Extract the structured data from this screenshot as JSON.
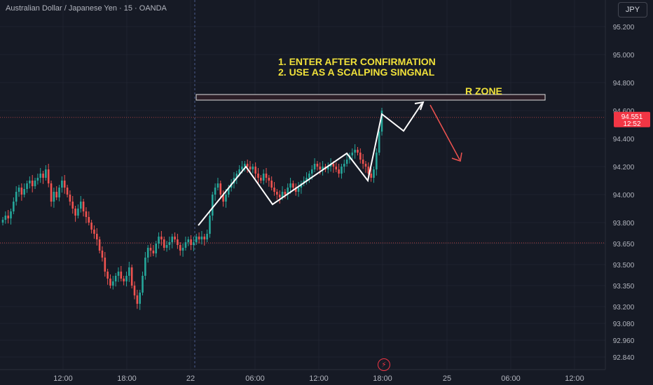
{
  "header": {
    "symbol": "Australian Dollar / Japanese Yen · 15 · OANDA"
  },
  "currency_button": "JPY",
  "annotations": {
    "line1": "1. ENTER AFTER CONFIRMATION",
    "line2": "2. USE AS A SCALPING SINGNAL",
    "zone_label": "R ZONE"
  },
  "price_tag": {
    "value": "94.551",
    "countdown": "12:52"
  },
  "colors": {
    "bg": "#161a25",
    "up": "#26a69a",
    "down": "#ef5350",
    "text": "#b2b5be",
    "annotation": "#f0e13a",
    "grid": "#1f2330"
  },
  "chart_data": {
    "type": "candlestick",
    "y_ticks": [
      "95.200",
      "95.000",
      "94.800",
      "94.600",
      "94.400",
      "94.200",
      "94.000",
      "93.800",
      "93.650",
      "93.500",
      "93.350",
      "93.200",
      "93.080",
      "92.960",
      "92.840"
    ],
    "x_ticks": [
      "12:00",
      "18:00",
      "22",
      "06:00",
      "12:00",
      "18:00",
      "25",
      "06:00",
      "12:00"
    ],
    "ylim": [
      92.8,
      95.32
    ],
    "current_price": 94.551,
    "resistance_zone": [
      94.675,
      94.715
    ],
    "series_close": [
      93.82,
      93.85,
      93.83,
      93.88,
      93.95,
      94.02,
      94.05,
      94.0,
      94.04,
      94.08,
      94.1,
      94.06,
      94.1,
      94.12,
      94.15,
      94.12,
      94.18,
      94.08,
      93.95,
      94.02,
      93.98,
      94.05,
      94.1,
      94.05,
      94.0,
      93.95,
      93.9,
      93.85,
      93.9,
      93.95,
      93.88,
      93.84,
      93.8,
      93.75,
      93.72,
      93.68,
      93.6,
      93.55,
      93.45,
      93.4,
      93.35,
      93.38,
      93.42,
      93.45,
      93.4,
      93.38,
      93.42,
      93.48,
      93.35,
      93.28,
      93.22,
      93.3,
      93.42,
      93.55,
      93.62,
      93.6,
      93.58,
      93.65,
      93.7,
      93.68,
      93.62,
      93.64,
      93.66,
      93.7,
      93.68,
      93.64,
      93.6,
      93.62,
      93.66,
      93.68,
      93.64,
      93.66,
      93.7,
      93.68,
      93.7,
      93.68,
      93.72,
      93.85,
      94.0,
      94.05,
      94.08,
      94.0,
      93.95,
      94.0,
      94.05,
      94.08,
      94.12,
      94.15,
      94.18,
      94.2,
      94.22,
      94.2,
      94.18,
      94.2,
      94.15,
      94.12,
      94.1,
      94.15,
      94.12,
      94.1,
      94.05,
      94.02,
      94.0,
      93.98,
      94.02,
      94.0,
      94.05,
      94.08,
      94.05,
      94.02,
      94.05,
      94.08,
      94.1,
      94.12,
      94.15,
      94.18,
      94.22,
      94.2,
      94.18,
      94.2,
      94.18,
      94.2,
      94.22,
      94.2,
      94.18,
      94.15,
      94.2,
      94.22,
      94.25,
      94.28,
      94.3,
      94.32,
      94.3,
      94.25,
      94.22,
      94.2,
      94.15,
      94.12,
      94.18,
      94.3,
      94.45,
      94.6
    ]
  }
}
